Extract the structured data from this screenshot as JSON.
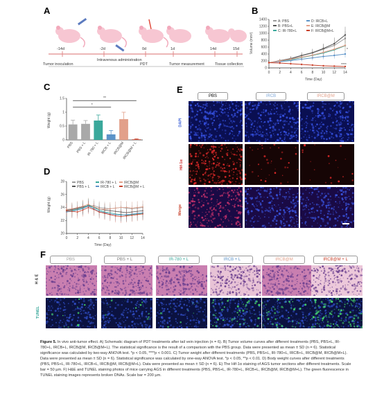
{
  "panel_labels": {
    "a": "A",
    "b": "B",
    "c": "C",
    "d": "D",
    "e": "E",
    "f": "F"
  },
  "schematic": {
    "days": [
      "-14d",
      "-2d",
      "0d",
      "1d",
      "14d",
      "15d"
    ],
    "events": {
      "iv": "Intravenous administration",
      "tumor_inoculation": "Tumor inoculation",
      "pdt": "PDT",
      "tumor_measurement": "Tumor measurement",
      "tissue_collection": "Tissue collection"
    }
  },
  "chart_data": [
    {
      "type": "line",
      "id": "B",
      "xlabel": "Time (Day)",
      "ylabel": "Volume (mm³)",
      "ylim": [
        0,
        1400
      ],
      "xlim": [
        0,
        14
      ],
      "x": [
        0,
        2,
        4,
        6,
        8,
        10,
        12,
        14
      ],
      "xticks": [
        0,
        2,
        4,
        6,
        8,
        10,
        12,
        14
      ],
      "yticks": [
        0,
        200,
        400,
        600,
        800,
        1000,
        1200,
        1400
      ],
      "legend": [
        "A: PBS",
        "B: PBS+L",
        "C: IR-780+L",
        "D: IRCB+L",
        "E: IRCB@M",
        "F: IRCB@M+L"
      ],
      "annotations": [
        "*",
        "****"
      ],
      "series": [
        {
          "name": "A: PBS",
          "color": "#9a9a9a",
          "values": [
            150,
            200,
            260,
            350,
            430,
            540,
            650,
            850
          ]
        },
        {
          "name": "B: PBS+L",
          "color": "#555555",
          "values": [
            150,
            210,
            270,
            360,
            440,
            560,
            700,
            950
          ]
        },
        {
          "name": "C: IR-780+L",
          "color": "#3aa89b",
          "values": [
            150,
            190,
            230,
            300,
            360,
            430,
            520,
            640
          ]
        },
        {
          "name": "D: IRCB+L",
          "color": "#5c93c8",
          "values": [
            150,
            180,
            210,
            250,
            290,
            330,
            360,
            400
          ]
        },
        {
          "name": "E: IRCB@M",
          "color": "#e2a08a",
          "values": [
            150,
            200,
            250,
            310,
            370,
            450,
            540,
            650
          ]
        },
        {
          "name": "F: IRCB@M+L",
          "color": "#c8412b",
          "values": [
            150,
            140,
            120,
            100,
            80,
            60,
            50,
            40
          ]
        }
      ]
    },
    {
      "type": "bar",
      "id": "C",
      "ylabel": "Weight (g)",
      "ylim": [
        0,
        1.5
      ],
      "yticks": [
        0,
        0.5,
        1.0,
        1.5
      ],
      "categories": [
        "PBS",
        "PBS + L",
        "IR-780 + L",
        "IRCB + L",
        "IRCB@M",
        "IRCB@M + L"
      ],
      "values": [
        0.56,
        0.58,
        0.7,
        0.2,
        0.75,
        0.02
      ],
      "errors": [
        0.15,
        0.12,
        0.2,
        0.14,
        0.25,
        0.02
      ],
      "colors": [
        "#a9a9a9",
        "#a9a9a9",
        "#3aa89b",
        "#5c93c8",
        "#e2a08a",
        "#c8412b"
      ],
      "annotations": [
        "**",
        "*"
      ]
    },
    {
      "type": "line",
      "id": "D",
      "xlabel": "Time (Day)",
      "ylabel": "Weight (g)",
      "ylim": [
        20,
        28
      ],
      "xlim": [
        0,
        14
      ],
      "x": [
        0,
        1,
        2,
        3,
        4,
        5,
        6,
        7,
        8,
        9,
        10,
        11,
        12,
        13,
        14
      ],
      "xticks": [
        0,
        2,
        4,
        6,
        8,
        10,
        12,
        14
      ],
      "yticks": [
        20,
        22,
        24,
        26,
        28
      ],
      "legend": [
        "PBS",
        "PBS + L",
        "IR-780 + L",
        "IRCB + L",
        "IRCB@M",
        "IRCB@M + L"
      ],
      "series": [
        {
          "name": "PBS",
          "color": "#9a9a9a",
          "values": [
            23.5,
            23.6,
            23.8,
            24.0,
            24.2,
            24.3,
            24.0,
            23.9,
            23.8,
            23.9,
            24.0,
            23.9,
            23.8,
            23.9,
            24.0
          ]
        },
        {
          "name": "PBS + L",
          "color": "#555555",
          "values": [
            23.6,
            23.7,
            23.9,
            24.1,
            24.3,
            24.0,
            23.8,
            23.6,
            23.5,
            23.4,
            23.3,
            23.2,
            23.3,
            23.4,
            23.5
          ]
        },
        {
          "name": "IR-780 + L",
          "color": "#3aa89b",
          "values": [
            23.4,
            23.5,
            23.7,
            23.9,
            24.4,
            24.0,
            23.6,
            23.3,
            23.2,
            23.0,
            22.9,
            22.8,
            22.9,
            23.0,
            23.1
          ]
        },
        {
          "name": "IRCB + L",
          "color": "#5c93c8",
          "values": [
            23.3,
            23.4,
            23.6,
            23.8,
            24.2,
            23.8,
            23.4,
            23.2,
            23.0,
            22.9,
            22.8,
            22.9,
            23.0,
            23.1,
            23.2
          ]
        },
        {
          "name": "IRCB@M",
          "color": "#e2a08a",
          "values": [
            23.7,
            23.8,
            24.0,
            24.2,
            24.5,
            24.1,
            23.8,
            23.7,
            23.8,
            23.9,
            24.0,
            24.0,
            23.9,
            24.0,
            24.1
          ]
        },
        {
          "name": "IRCB@M + L",
          "color": "#c8412b",
          "values": [
            23.5,
            23.4,
            23.3,
            23.6,
            24.0,
            23.7,
            23.3,
            23.1,
            22.9,
            22.7,
            22.6,
            22.7,
            22.8,
            22.9,
            23.0
          ]
        }
      ]
    }
  ],
  "panel_e": {
    "columns": [
      "PBS",
      "IRCB",
      "IRCB@M"
    ],
    "column_colors": [
      "#333333",
      "#7fa8d8",
      "#e2a08a"
    ],
    "rows": [
      "DAPI",
      "Hif-1α",
      "Merge"
    ],
    "row_colors": [
      "#3b5fd6",
      "#d03030",
      "#c8412b"
    ]
  },
  "panel_f": {
    "columns": [
      "PBS",
      "PBS + L",
      "IR-780 + L",
      "IRCB + L",
      "IRCB@M",
      "IRCB@M + L"
    ],
    "column_colors": [
      "#9a9a9a",
      "#777777",
      "#3aa89b",
      "#5c93c8",
      "#e2a08a",
      "#c8412b"
    ],
    "rows": [
      "H & E",
      "TUNEL"
    ],
    "row_colors": [
      "#333333",
      "#3aa89b"
    ]
  },
  "caption": {
    "label": "Figure 5.",
    "text": "In vivo anti-tumor effect. A) Schematic diagram of PDT treatments after tail vein injection (n = 6). B) Tumor volume curves after different treatments (PBS, PBS+L, IR-780+L, IRCB+L, IRCB@M, IRCB@M+L). The statistical significance is the result of a comparison with the PBS group. Data were presented as mean ± SD (n = 6). Statistical significance was calculated by two-way ANOVA test. *p < 0.05, ****p < 0.001. C) Tumor weight after different treatments (PBS, PBS+L, IR-780+L, IRCB+L, IRCB@M, IRCB@M+L). Data were presented as mean ± SD (n = 6). Statistical significance was calculated by one-way ANOVA test. *p < 0.05, **p < 0.01. D) Body weight curves after different treatments (PBS, PBS+L, IR-780+L, IRCB+L, IRCB@M, IRCB@M+L). Data were presented as mean ± SD (n = 6). E) The Hif-1α staining of AGS tumor sections after different treatments. Scale bar = 50 µm. F) H&E and TUNEL staining photos of mice carrying AGS in different treatments (PBS, PBS+L, IR-780+L, IRCB+L, IRCB@M, IRCB@M+L). The green fluorescence in TUNEL staining images represents broken DNAs. Scale bar = 200 µm."
  }
}
